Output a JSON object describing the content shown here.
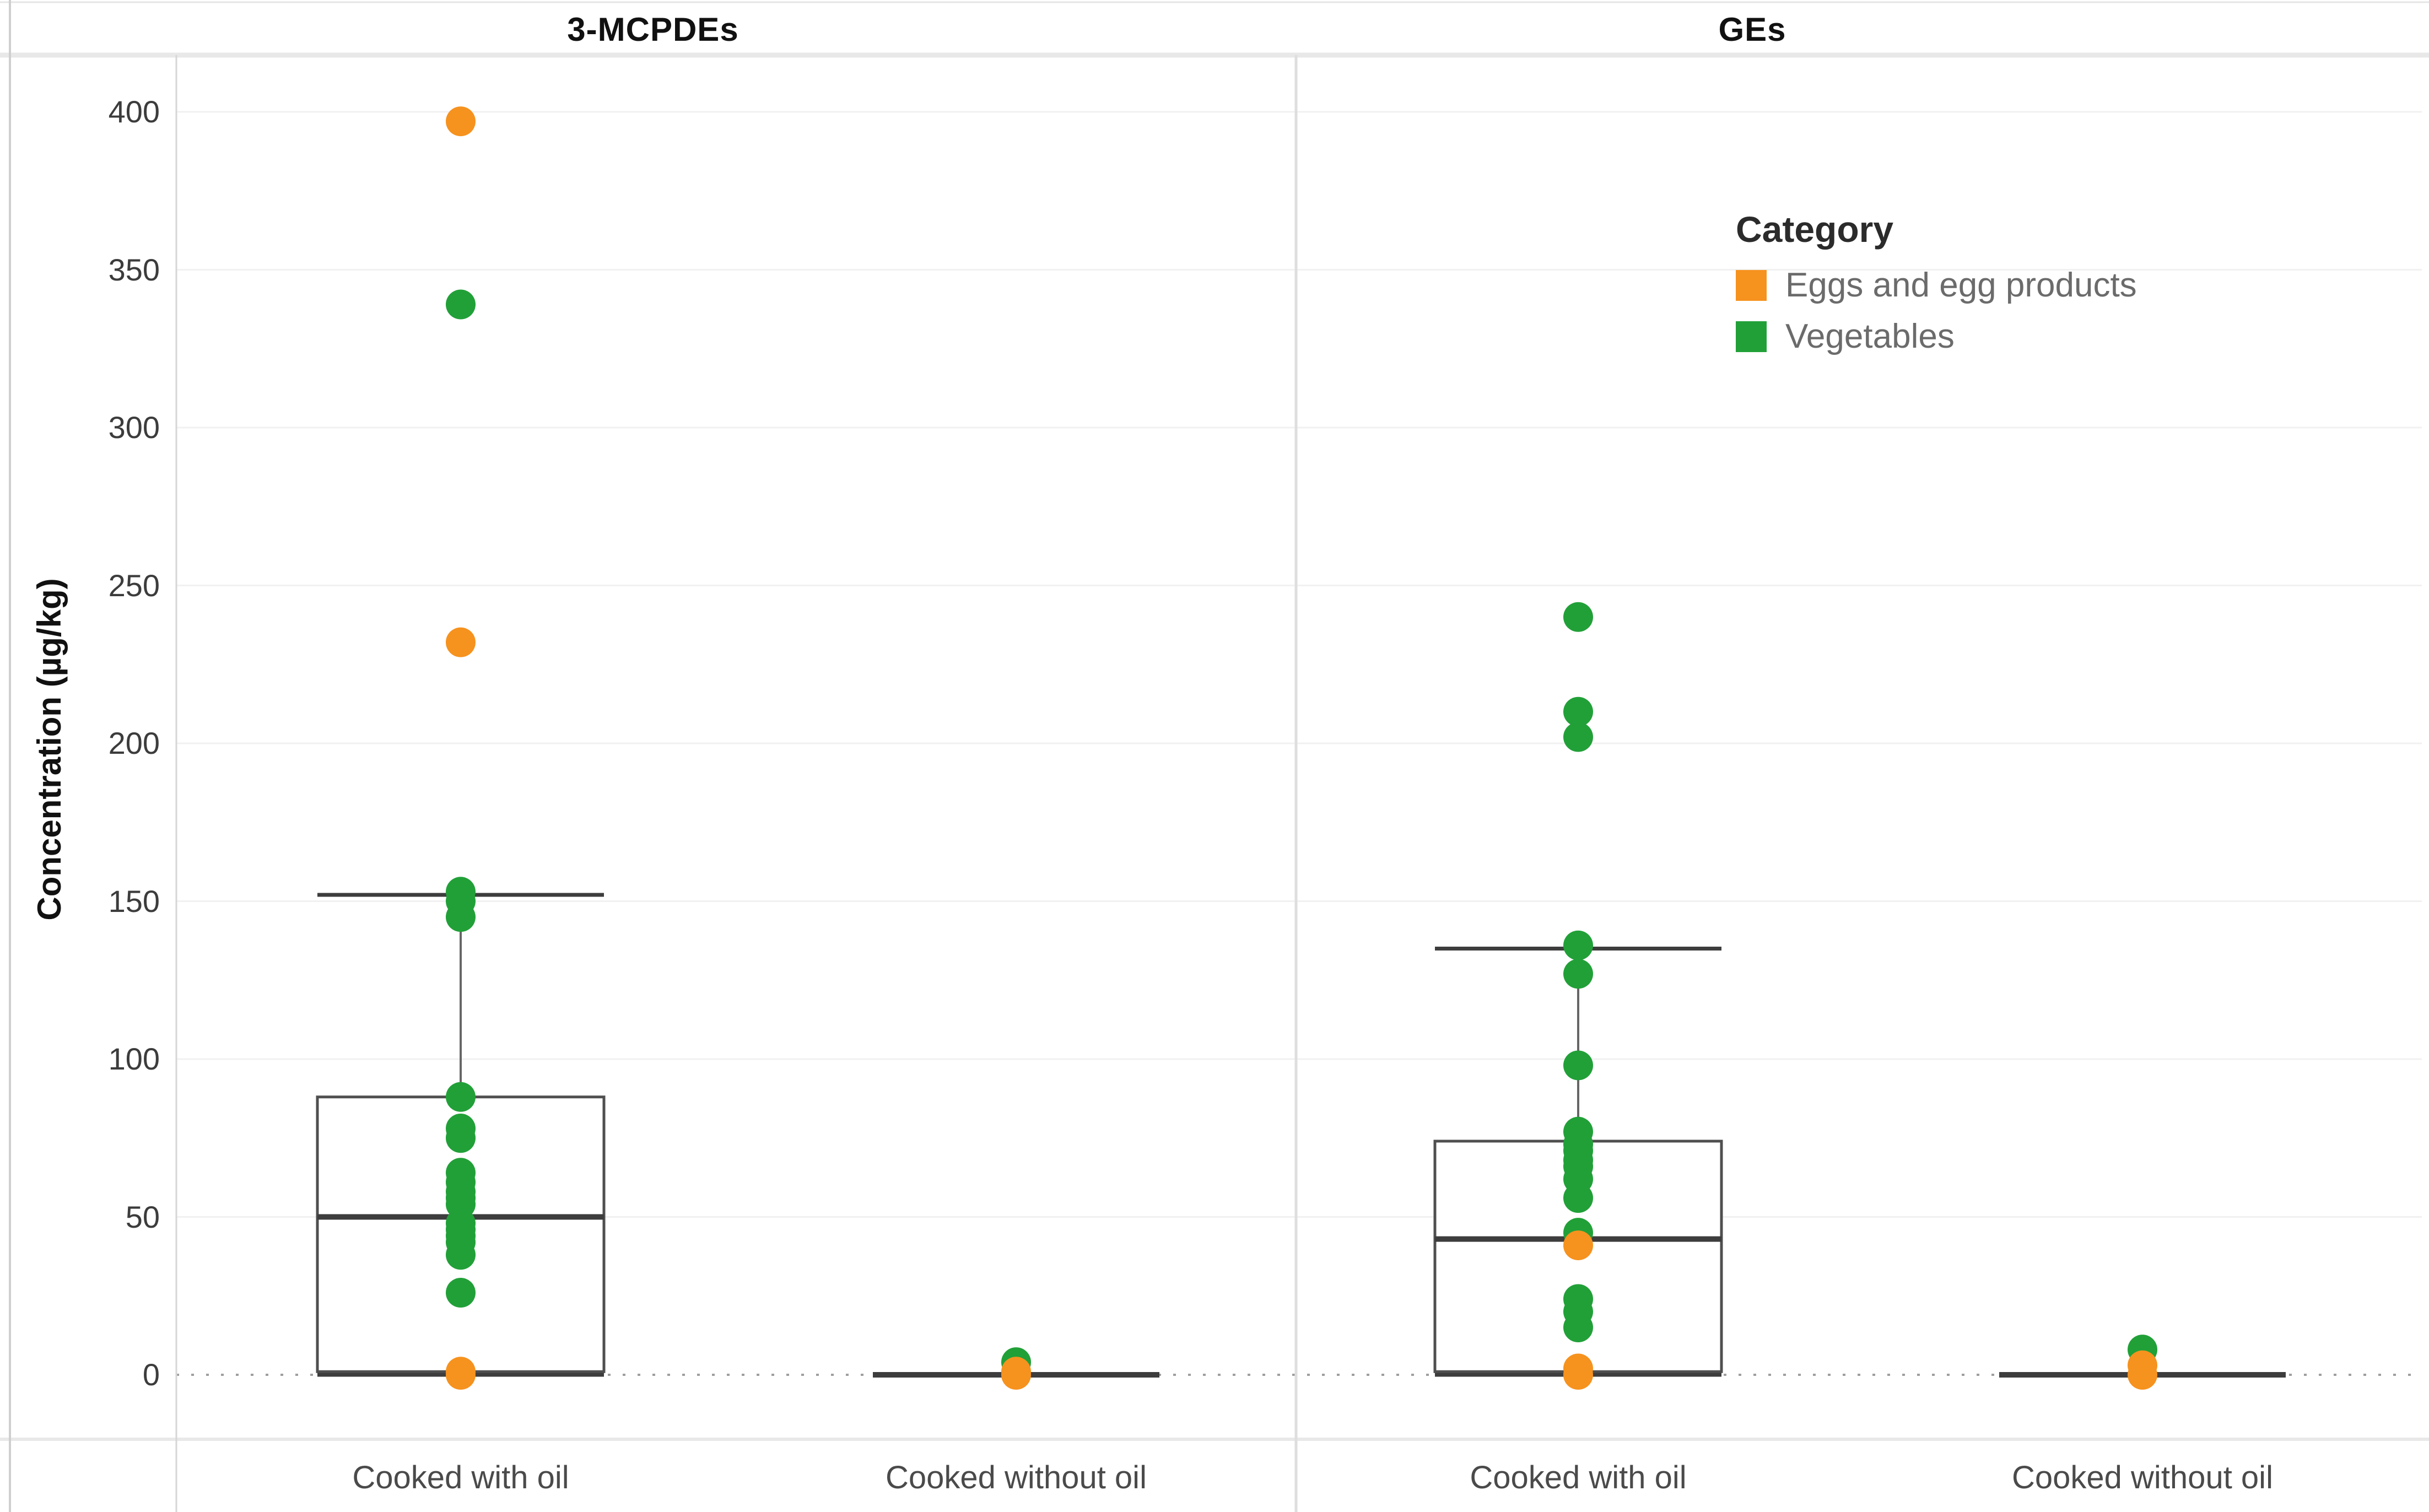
{
  "chart_data": {
    "type": "box",
    "title": "",
    "ylabel": "Concentration (µg/kg)",
    "ylim": [
      0,
      400
    ],
    "yticks": [
      400,
      350,
      300,
      250,
      200,
      150,
      100,
      50,
      0
    ],
    "grid": "horizontal, light gray; dotted reference line at 0",
    "legend": {
      "title": "Category",
      "position": "upper area of GEs panel",
      "entries": [
        {
          "key": "eggs",
          "label": "Eggs and egg products",
          "color": "#f6921e"
        },
        {
          "key": "veg",
          "label": "Vegetables",
          "color": "#21a038"
        }
      ]
    },
    "panels": [
      {
        "title": "3-MCPDEs",
        "groups": [
          {
            "label": "Cooked with oil",
            "box": {
              "q1": 1,
              "median": 50,
              "q3": 88,
              "whisker_low": 0,
              "whisker_high": 152,
              "collapsed": false
            },
            "points": [
              {
                "category": "veg",
                "value": 339
              },
              {
                "category": "veg",
                "value": 153
              },
              {
                "category": "veg",
                "value": 150
              },
              {
                "category": "veg",
                "value": 145
              },
              {
                "category": "veg",
                "value": 88
              },
              {
                "category": "veg",
                "value": 78
              },
              {
                "category": "veg",
                "value": 75
              },
              {
                "category": "veg",
                "value": 64
              },
              {
                "category": "veg",
                "value": 61
              },
              {
                "category": "veg",
                "value": 58
              },
              {
                "category": "veg",
                "value": 56
              },
              {
                "category": "veg",
                "value": 54
              },
              {
                "category": "veg",
                "value": 48
              },
              {
                "category": "veg",
                "value": 46
              },
              {
                "category": "veg",
                "value": 44
              },
              {
                "category": "veg",
                "value": 42
              },
              {
                "category": "veg",
                "value": 38
              },
              {
                "category": "veg",
                "value": 26
              },
              {
                "category": "eggs",
                "value": 397
              },
              {
                "category": "eggs",
                "value": 232
              },
              {
                "category": "eggs",
                "value": 1
              },
              {
                "category": "eggs",
                "value": 0
              }
            ]
          },
          {
            "label": "Cooked without oil",
            "box": {
              "q1": 0,
              "median": 0,
              "q3": 0,
              "whisker_low": 0,
              "whisker_high": 0,
              "collapsed": true
            },
            "points": [
              {
                "category": "veg",
                "value": 4
              },
              {
                "category": "eggs",
                "value": 1
              },
              {
                "category": "eggs",
                "value": 0
              }
            ]
          }
        ]
      },
      {
        "title": "GEs",
        "groups": [
          {
            "label": "Cooked with oil",
            "box": {
              "q1": 1,
              "median": 43,
              "q3": 74,
              "whisker_low": 0,
              "whisker_high": 135,
              "collapsed": false
            },
            "points": [
              {
                "category": "veg",
                "value": 240
              },
              {
                "category": "veg",
                "value": 210
              },
              {
                "category": "veg",
                "value": 202
              },
              {
                "category": "veg",
                "value": 136
              },
              {
                "category": "veg",
                "value": 127
              },
              {
                "category": "veg",
                "value": 98
              },
              {
                "category": "veg",
                "value": 77
              },
              {
                "category": "veg",
                "value": 73
              },
              {
                "category": "veg",
                "value": 71
              },
              {
                "category": "veg",
                "value": 68
              },
              {
                "category": "veg",
                "value": 66
              },
              {
                "category": "veg",
                "value": 62
              },
              {
                "category": "veg",
                "value": 56
              },
              {
                "category": "veg",
                "value": 45
              },
              {
                "category": "veg",
                "value": 24
              },
              {
                "category": "veg",
                "value": 20
              },
              {
                "category": "veg",
                "value": 15
              },
              {
                "category": "eggs",
                "value": 41
              },
              {
                "category": "eggs",
                "value": 2
              },
              {
                "category": "eggs",
                "value": 0
              }
            ]
          },
          {
            "label": "Cooked without oil",
            "box": {
              "q1": 0,
              "median": 0,
              "q3": 0,
              "whisker_low": 0,
              "whisker_high": 0,
              "collapsed": true
            },
            "points": [
              {
                "category": "veg",
                "value": 8
              },
              {
                "category": "eggs",
                "value": 3
              },
              {
                "category": "eggs",
                "value": 0
              }
            ]
          }
        ]
      }
    ],
    "style_colors": {
      "gridline": "#f1f1f1",
      "zero_line": "#9e9e9e",
      "box_stroke": "#4f4f4f",
      "median_stroke": "#3d3d3d",
      "whisker_stroke": "#666666",
      "frame": "#dedede"
    }
  }
}
